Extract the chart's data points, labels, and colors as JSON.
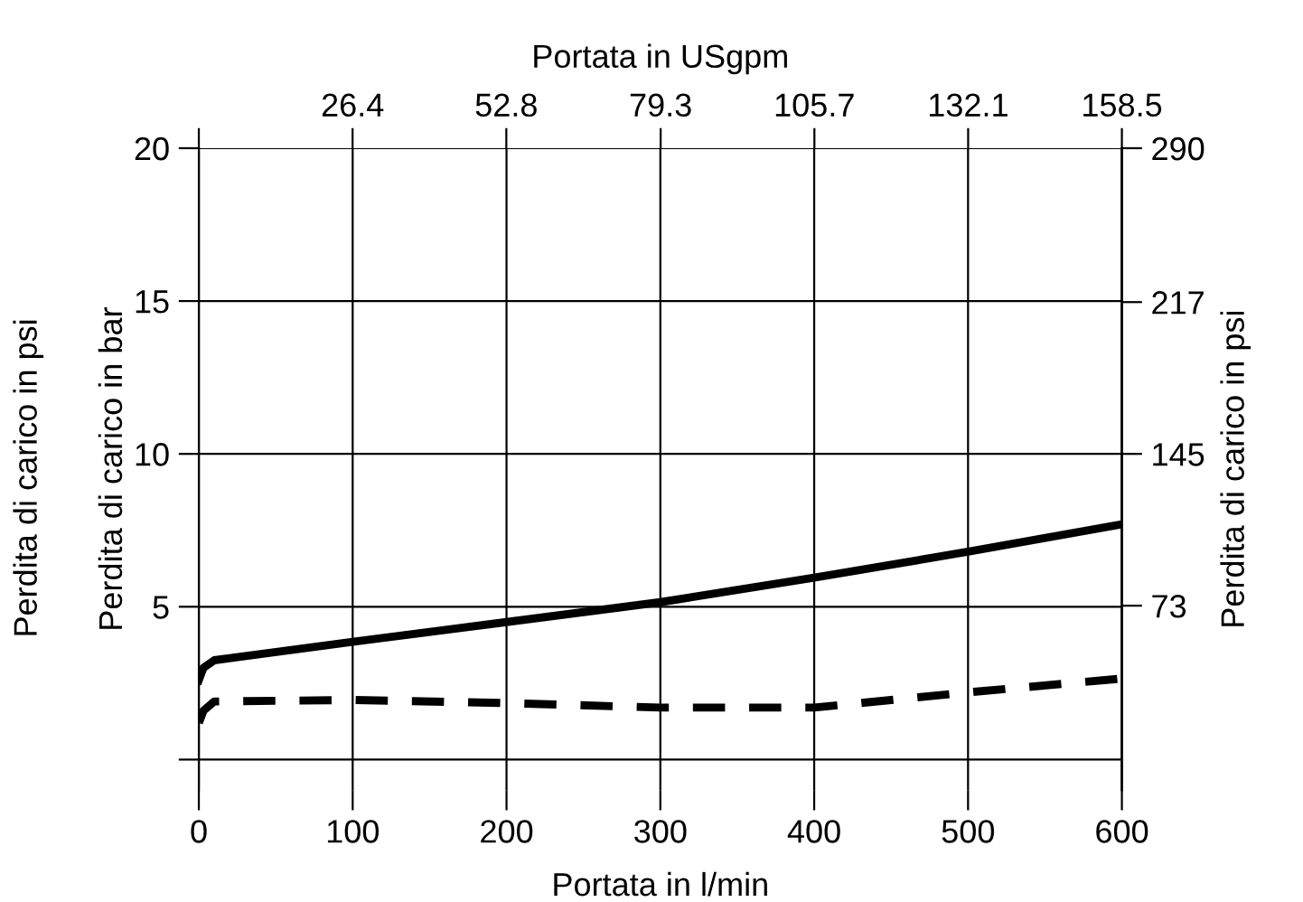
{
  "chart_data": {
    "type": "line",
    "xlabel": "Portata in l/min",
    "ylabel": "Perdita di carico in bar",
    "y2label": "Perdita di carico in psi",
    "x2label": "Portata in USgpm",
    "annotations": [
      "Perdita di carico in psi"
    ],
    "series": [
      {
        "color": "#000000",
        "line_style": "solid",
        "x": [
          0,
          3,
          10,
          100,
          200,
          300,
          400,
          500,
          600
        ],
        "values": [
          2.6,
          3.0,
          3.25,
          3.85,
          4.5,
          5.15,
          5.95,
          6.8,
          7.7
        ]
      },
      {
        "color": "#000000",
        "line_style": "dashed",
        "x": [
          0,
          3,
          10,
          100,
          200,
          300,
          400,
          450,
          500,
          600
        ],
        "values": [
          1.2,
          1.6,
          1.9,
          1.95,
          1.85,
          1.7,
          1.7,
          1.95,
          2.2,
          2.65
        ]
      }
    ],
    "xlim": [
      0,
      600
    ],
    "xticks": [
      0,
      100,
      200,
      300,
      400,
      500,
      600
    ],
    "ylim": [
      -1,
      20
    ],
    "yticks": [
      {
        "value": 0,
        "label": null
      },
      5,
      10,
      15,
      20
    ],
    "y2lim": [
      -14.5,
      290
    ],
    "y2ticks": [
      73,
      145,
      217,
      290
    ],
    "x2lim": [
      0,
      158.5
    ],
    "x2ticks": [
      {
        "value": 0,
        "label": null
      },
      26.4,
      52.8,
      79.3,
      105.7,
      132.1,
      158.5
    ],
    "grid": true,
    "marker": "none"
  }
}
